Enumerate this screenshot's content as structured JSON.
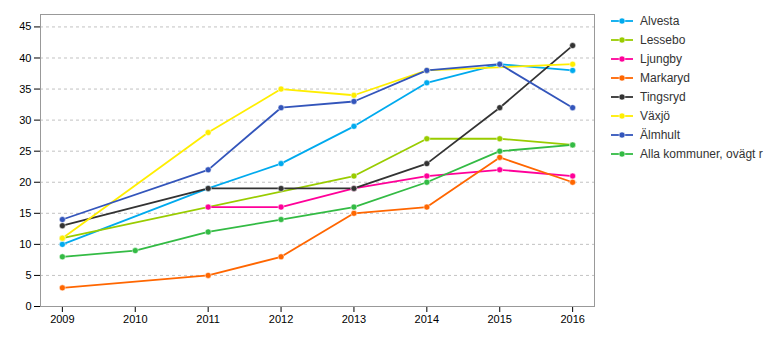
{
  "chart_data": {
    "type": "line",
    "x": [
      2009,
      2010,
      2011,
      2012,
      2013,
      2014,
      2015,
      2016
    ],
    "series": [
      {
        "name": "Alvesta",
        "color": "#00AAEE",
        "values": [
          10,
          null,
          19,
          23,
          29,
          36,
          39,
          38
        ]
      },
      {
        "name": "Lessebo",
        "color": "#99CC00",
        "values": [
          11,
          null,
          null,
          null,
          21,
          27,
          27,
          26
        ]
      },
      {
        "name": "Ljungby",
        "color": "#FF0099",
        "values": [
          null,
          null,
          16,
          16,
          19,
          21,
          22,
          21
        ]
      },
      {
        "name": "Markaryd",
        "color": "#FF6600",
        "values": [
          3,
          null,
          5,
          8,
          15,
          16,
          24,
          20
        ]
      },
      {
        "name": "Tingsryd",
        "color": "#333333",
        "values": [
          13,
          null,
          19,
          19,
          19,
          23,
          32,
          42
        ]
      },
      {
        "name": "Växjö",
        "color": "#FFEE00",
        "values": [
          11,
          null,
          28,
          35,
          34,
          38,
          null,
          39
        ]
      },
      {
        "name": "Älmhult",
        "color": "#3355BB",
        "values": [
          14,
          null,
          22,
          32,
          33,
          38,
          39,
          32
        ]
      },
      {
        "name": "Alla kommuner, ovägt r",
        "color": "#33BB44",
        "values": [
          8,
          9,
          12,
          14,
          16,
          20,
          25,
          26
        ]
      }
    ],
    "xlim": [
      2008.7,
      2016.3
    ],
    "xticks": [
      2009,
      2010,
      2011,
      2012,
      2013,
      2014,
      2015,
      2016
    ],
    "ylim": [
      0,
      47
    ],
    "yticks": [
      0,
      5,
      10,
      15,
      20,
      25,
      30,
      35,
      40,
      45
    ],
    "grid": true,
    "legend": "right",
    "marker": "circle"
  }
}
